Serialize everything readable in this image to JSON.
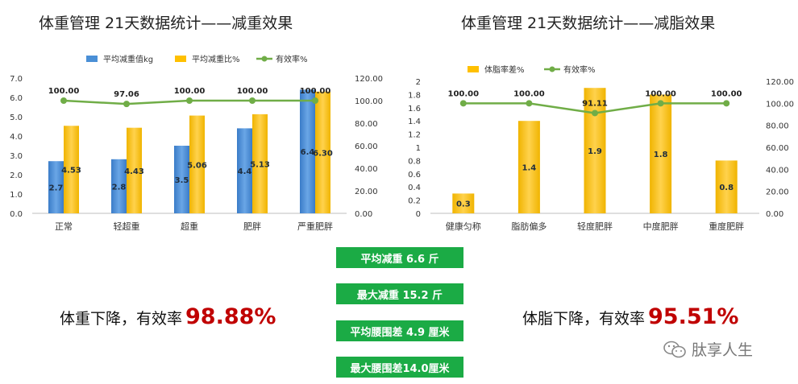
{
  "titles": {
    "left": "体重管理 21天数据统计——减重效果",
    "right": "体重管理 21天数据统计——减脂效果"
  },
  "stats": [
    "平均减重 6.6 斤",
    "最大减重 15.2 斤",
    "平均腰围差 4.9 厘米",
    "最大腰围差14.0厘米"
  ],
  "effectiveness": {
    "left_label": "体重下降，有效率",
    "left_value": "98.88%",
    "right_label": "体脂下降，有效率",
    "right_value": "95.51%"
  },
  "watermark": "肽享人生",
  "colors": {
    "blue": "#4a8fd6",
    "gold": "#ffc000",
    "green": "#70ad47",
    "red": "#c00000",
    "pill": "#1bab45"
  },
  "chart_data": [
    {
      "type": "bar",
      "title": "体重管理 21天数据统计——减重效果",
      "categories": [
        "正常",
        "轻超重",
        "超重",
        "肥胖",
        "严重肥胖"
      ],
      "series": [
        {
          "name": "平均减重值kg",
          "axis": "left",
          "values": [
            2.7,
            2.8,
            3.5,
            4.4,
            6.4
          ],
          "labels": [
            "2.7",
            "2.8",
            "3.5",
            "4.4",
            "6.4"
          ]
        },
        {
          "name": "平均减重比%",
          "axis": "left",
          "values": [
            4.53,
            4.43,
            5.06,
            5.13,
            6.3
          ],
          "labels": [
            "4.53",
            "4.43",
            "5.06",
            "5.13",
            "6.30"
          ]
        },
        {
          "name": "有效率%",
          "axis": "right",
          "kind": "line",
          "values": [
            100.0,
            97.06,
            100.0,
            100.0,
            100.0
          ],
          "labels": [
            "100.00",
            "97.06",
            "100.00",
            "100.00",
            "100.00"
          ]
        }
      ],
      "left_axis": {
        "ylim": [
          0,
          7
        ],
        "ticks": [
          "0.0",
          "1.0",
          "2.0",
          "3.0",
          "4.0",
          "5.0",
          "6.0",
          "7.0"
        ]
      },
      "right_axis": {
        "ylim": [
          0,
          120
        ],
        "ticks": [
          "0.00",
          "20.00",
          "40.00",
          "60.00",
          "80.00",
          "100.00",
          "120.00"
        ]
      },
      "legend": "top",
      "grid": false
    },
    {
      "type": "bar",
      "title": "体重管理 21天数据统计——减脂效果",
      "categories": [
        "健康匀称",
        "脂肪偏多",
        "轻度肥胖",
        "中度肥胖",
        "重度肥胖"
      ],
      "series": [
        {
          "name": "体脂率差%",
          "axis": "left",
          "values": [
            0.3,
            1.4,
            1.9,
            1.8,
            0.8
          ],
          "labels": [
            "0.3",
            "1.4",
            "1.9",
            "1.8",
            "0.8"
          ]
        },
        {
          "name": "有效率%",
          "axis": "right",
          "kind": "line",
          "values": [
            100.0,
            100.0,
            91.11,
            100.0,
            100.0
          ],
          "labels": [
            "100.00",
            "100.00",
            "91.11",
            "100.00",
            "100.00"
          ]
        }
      ],
      "left_axis": {
        "ylim": [
          0,
          2
        ],
        "ticks": [
          "0",
          "0.2",
          "0.4",
          "0.6",
          "0.8",
          "1",
          "1.2",
          "1.4",
          "1.6",
          "1.8",
          "2"
        ]
      },
      "right_axis": {
        "ylim": [
          0,
          120
        ],
        "ticks": [
          "0.00",
          "20.00",
          "40.00",
          "60.00",
          "80.00",
          "100.00",
          "120.00"
        ]
      },
      "legend": "top",
      "grid": false
    }
  ]
}
